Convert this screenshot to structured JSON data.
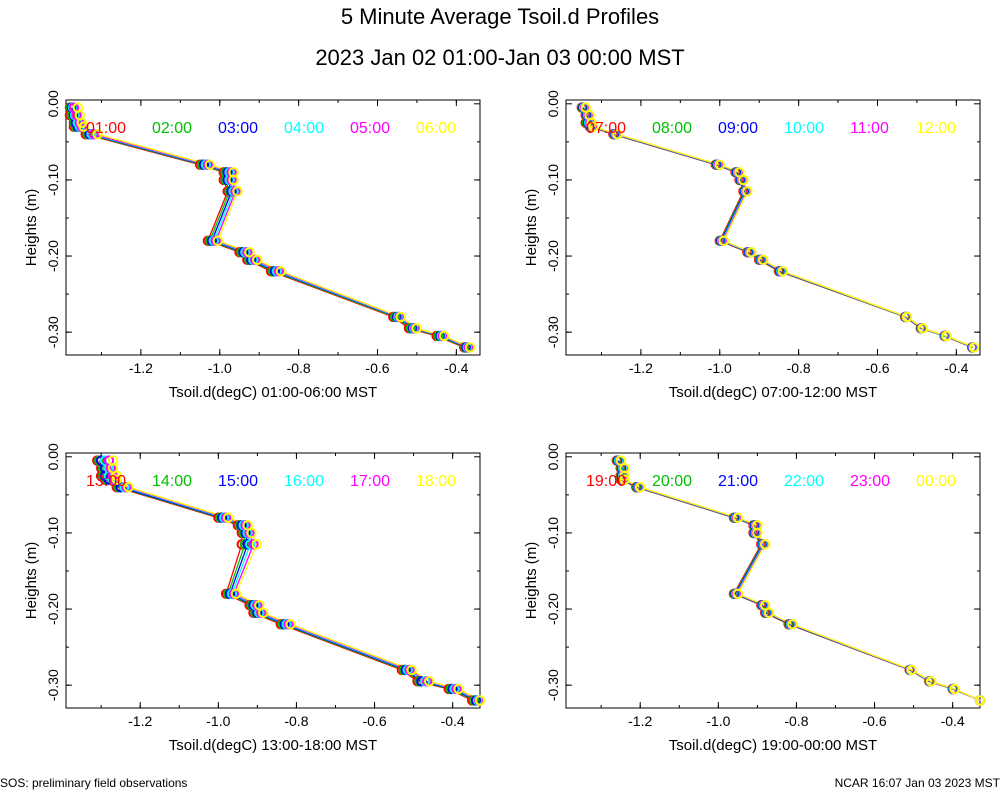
{
  "title": "5 Minute Average Tsoil.d Profiles",
  "subtitle": "2023 Jan 02 01:00-Jan 03 00:00 MST",
  "footer_left": "SOS: preliminary field observations",
  "footer_right": "NCAR 16:07 Jan 03 2023 MST",
  "colors": [
    "#ff0000",
    "#00c000",
    "#0000ff",
    "#00ffff",
    "#ff00ff",
    "#ffff00"
  ],
  "chart_data": [
    {
      "type": "line",
      "xlabel": "Tsoil.d(degC) 01:00-06:00 MST",
      "ylabel": "Heights (m)",
      "xlim": [
        -1.39,
        -0.34
      ],
      "ylim": [
        -0.33,
        0.005
      ],
      "xticks": [
        -1.2,
        -1.0,
        -0.8,
        -0.6,
        -0.4
      ],
      "xtick_labels": [
        "-1.2",
        "-1.0",
        "-0.8",
        "-0.6",
        "-0.4"
      ],
      "yticks": [
        0.0,
        -0.1,
        -0.2,
        -0.3
      ],
      "ytick_labels": [
        "0.00",
        "-0.10",
        "-0.20",
        "-0.30"
      ],
      "heights": [
        -0.005,
        -0.015,
        -0.025,
        -0.03,
        -0.04,
        -0.08,
        -0.09,
        -0.1,
        -0.115,
        -0.18,
        -0.195,
        -0.205,
        -0.22,
        -0.28,
        -0.295,
        -0.305,
        -0.32
      ],
      "series": [
        {
          "name": "01:00",
          "values": [
            -1.38,
            -1.38,
            -1.37,
            -1.37,
            -1.34,
            -1.05,
            -0.99,
            -0.99,
            -0.98,
            -1.03,
            -0.95,
            -0.93,
            -0.87,
            -0.56,
            -0.52,
            -0.45,
            -0.38
          ]
        },
        {
          "name": "02:00",
          "values": [
            -1.378,
            -1.375,
            -1.368,
            -1.365,
            -1.335,
            -1.045,
            -0.985,
            -0.985,
            -0.975,
            -1.025,
            -0.945,
            -0.925,
            -0.865,
            -0.555,
            -0.515,
            -0.445,
            -0.377
          ]
        },
        {
          "name": "03:00",
          "values": [
            -1.375,
            -1.37,
            -1.365,
            -1.36,
            -1.33,
            -1.04,
            -0.98,
            -0.98,
            -0.97,
            -1.02,
            -0.94,
            -0.92,
            -0.86,
            -0.55,
            -0.51,
            -0.44,
            -0.374
          ]
        },
        {
          "name": "04:00",
          "values": [
            -1.372,
            -1.367,
            -1.36,
            -1.355,
            -1.325,
            -1.035,
            -0.975,
            -0.975,
            -0.965,
            -1.015,
            -0.935,
            -0.915,
            -0.855,
            -0.547,
            -0.507,
            -0.437,
            -0.371
          ]
        },
        {
          "name": "05:00",
          "values": [
            -1.37,
            -1.363,
            -1.355,
            -1.35,
            -1.32,
            -1.03,
            -0.97,
            -0.97,
            -0.96,
            -1.01,
            -0.93,
            -0.91,
            -0.85,
            -0.544,
            -0.504,
            -0.434,
            -0.368
          ]
        },
        {
          "name": "06:00",
          "values": [
            -1.36,
            -1.355,
            -1.35,
            -1.345,
            -1.31,
            -1.025,
            -0.965,
            -0.965,
            -0.955,
            -1.005,
            -0.925,
            -0.905,
            -0.845,
            -0.541,
            -0.501,
            -0.431,
            -0.365
          ]
        }
      ]
    },
    {
      "type": "line",
      "xlabel": "Tsoil.d(degC) 07:00-12:00 MST",
      "ylabel": "Heights (m)",
      "xlim": [
        -1.39,
        -0.34
      ],
      "ylim": [
        -0.33,
        0.005
      ],
      "xticks": [
        -1.2,
        -1.0,
        -0.8,
        -0.6,
        -0.4
      ],
      "xtick_labels": [
        "-1.2",
        "-1.0",
        "-0.8",
        "-0.6",
        "-0.4"
      ],
      "yticks": [
        0.0,
        -0.1,
        -0.2,
        -0.3
      ],
      "ytick_labels": [
        "0.00",
        "-0.10",
        "-0.20",
        "-0.30"
      ],
      "heights": [
        -0.005,
        -0.015,
        -0.025,
        -0.03,
        -0.04,
        -0.08,
        -0.09,
        -0.1,
        -0.115,
        -0.18,
        -0.195,
        -0.205,
        -0.22,
        -0.28,
        -0.295,
        -0.305,
        -0.32
      ],
      "series": [
        {
          "name": "07:00",
          "values": [
            -1.35,
            -1.34,
            -1.34,
            -1.33,
            -1.27,
            -1.01,
            -0.96,
            -0.95,
            -0.94,
            -1.0,
            -0.93,
            -0.9,
            -0.85,
            -0.53,
            -0.49,
            -0.43,
            -0.36
          ]
        },
        {
          "name": "08:00",
          "values": [
            -1.348,
            -1.338,
            -1.337,
            -1.328,
            -1.268,
            -1.008,
            -0.958,
            -0.948,
            -0.938,
            -0.998,
            -0.928,
            -0.898,
            -0.848,
            -0.529,
            -0.489,
            -0.429,
            -0.359
          ]
        },
        {
          "name": "09:00",
          "values": [
            -1.346,
            -1.336,
            -1.334,
            -1.326,
            -1.266,
            -1.006,
            -0.956,
            -0.946,
            -0.936,
            -0.996,
            -0.926,
            -0.896,
            -0.846,
            -0.528,
            -0.488,
            -0.428,
            -0.358
          ]
        },
        {
          "name": "10:00",
          "values": [
            -1.344,
            -1.334,
            -1.331,
            -1.324,
            -1.264,
            -1.004,
            -0.954,
            -0.944,
            -0.934,
            -0.994,
            -0.924,
            -0.894,
            -0.844,
            -0.527,
            -0.487,
            -0.427,
            -0.357
          ]
        },
        {
          "name": "11:00",
          "values": [
            -1.342,
            -1.332,
            -1.328,
            -1.322,
            -1.262,
            -1.002,
            -0.952,
            -0.942,
            -0.932,
            -0.992,
            -0.922,
            -0.892,
            -0.842,
            -0.526,
            -0.486,
            -0.426,
            -0.356
          ]
        },
        {
          "name": "12:00",
          "values": [
            -1.34,
            -1.33,
            -1.325,
            -1.32,
            -1.26,
            -1.0,
            -0.95,
            -0.94,
            -0.93,
            -0.99,
            -0.92,
            -0.89,
            -0.84,
            -0.525,
            -0.485,
            -0.425,
            -0.355
          ]
        }
      ]
    },
    {
      "type": "line",
      "xlabel": "Tsoil.d(degC) 13:00-18:00 MST",
      "ylabel": "Heights (m)",
      "xlim": [
        -1.39,
        -0.33
      ],
      "ylim": [
        -0.33,
        0.005
      ],
      "xticks": [
        -1.2,
        -1.0,
        -0.8,
        -0.6,
        -0.4
      ],
      "xtick_labels": [
        "-1.2",
        "-1.0",
        "-0.8",
        "-0.6",
        "-0.4"
      ],
      "yticks": [
        0.0,
        -0.1,
        -0.2,
        -0.3
      ],
      "ytick_labels": [
        "0.00",
        "-0.10",
        "-0.20",
        "-0.30"
      ],
      "heights": [
        -0.005,
        -0.015,
        -0.025,
        -0.03,
        -0.04,
        -0.08,
        -0.09,
        -0.1,
        -0.115,
        -0.18,
        -0.195,
        -0.205,
        -0.22,
        -0.28,
        -0.295,
        -0.305,
        -0.32
      ],
      "series": [
        {
          "name": "13:00",
          "values": [
            -1.31,
            -1.3,
            -1.3,
            -1.29,
            -1.26,
            -1.0,
            -0.95,
            -0.94,
            -0.94,
            -0.98,
            -0.92,
            -0.91,
            -0.84,
            -0.53,
            -0.49,
            -0.41,
            -0.35
          ]
        },
        {
          "name": "14:00",
          "values": [
            -1.305,
            -1.295,
            -1.295,
            -1.285,
            -1.255,
            -0.995,
            -0.945,
            -0.935,
            -0.932,
            -0.975,
            -0.915,
            -0.905,
            -0.835,
            -0.525,
            -0.485,
            -0.405,
            -0.345
          ]
        },
        {
          "name": "15:00",
          "values": [
            -1.3,
            -1.29,
            -1.29,
            -1.28,
            -1.25,
            -0.99,
            -0.94,
            -0.93,
            -0.925,
            -0.97,
            -0.91,
            -0.9,
            -0.83,
            -0.52,
            -0.48,
            -0.4,
            -0.34
          ]
        },
        {
          "name": "16:00",
          "values": [
            -1.29,
            -1.28,
            -1.28,
            -1.27,
            -1.24,
            -0.985,
            -0.935,
            -0.925,
            -0.918,
            -0.965,
            -0.905,
            -0.895,
            -0.825,
            -0.515,
            -0.47,
            -0.395,
            -0.335
          ]
        },
        {
          "name": "17:00",
          "values": [
            -1.28,
            -1.275,
            -1.27,
            -1.265,
            -1.235,
            -0.98,
            -0.93,
            -0.92,
            -0.91,
            -0.96,
            -0.9,
            -0.89,
            -0.82,
            -0.51,
            -0.465,
            -0.39,
            -0.332
          ]
        },
        {
          "name": "18:00",
          "values": [
            -1.27,
            -1.27,
            -1.26,
            -1.26,
            -1.23,
            -0.975,
            -0.925,
            -0.915,
            -0.902,
            -0.955,
            -0.895,
            -0.885,
            -0.815,
            -0.505,
            -0.46,
            -0.385,
            -0.33
          ]
        }
      ]
    },
    {
      "type": "line",
      "xlabel": "Tsoil.d(degC) 19:00-00:00 MST",
      "ylabel": "Heights (m)",
      "xlim": [
        -1.39,
        -0.33
      ],
      "ylim": [
        -0.33,
        0.005
      ],
      "xticks": [
        -1.2,
        -1.0,
        -0.8,
        -0.6,
        -0.4
      ],
      "xtick_labels": [
        "-1.2",
        "-1.0",
        "-0.8",
        "-0.6",
        "-0.4"
      ],
      "yticks": [
        0.0,
        -0.1,
        -0.2,
        -0.3
      ],
      "ytick_labels": [
        "0.00",
        "-0.10",
        "-0.20",
        "-0.30"
      ],
      "heights": [
        -0.005,
        -0.015,
        -0.025,
        -0.03,
        -0.04,
        -0.08,
        -0.09,
        -0.1,
        -0.115,
        -0.18,
        -0.195,
        -0.205,
        -0.22,
        -0.28,
        -0.295,
        -0.305,
        -0.32
      ],
      "series": [
        {
          "name": "19:00",
          "values": [
            -1.26,
            -1.25,
            -1.25,
            -1.25,
            -1.21,
            -0.96,
            -0.91,
            -0.91,
            -0.89,
            -0.96,
            -0.89,
            -0.88,
            -0.82,
            -0.51,
            -0.46,
            -0.4,
            -0.33
          ]
        },
        {
          "name": "20:00",
          "values": [
            -1.258,
            -1.248,
            -1.248,
            -1.248,
            -1.208,
            -0.958,
            -0.908,
            -0.908,
            -0.888,
            -0.958,
            -0.888,
            -0.878,
            -0.818,
            -0.509,
            -0.459,
            -0.399,
            -0.33
          ]
        },
        {
          "name": "21:00",
          "values": [
            -1.256,
            -1.246,
            -1.246,
            -1.246,
            -1.206,
            -0.956,
            -0.906,
            -0.906,
            -0.886,
            -0.956,
            -0.886,
            -0.876,
            -0.816,
            -0.508,
            -0.458,
            -0.398,
            -0.33
          ]
        },
        {
          "name": "22:00",
          "values": [
            -1.254,
            -1.244,
            -1.244,
            -1.244,
            -1.204,
            -0.954,
            -0.904,
            -0.904,
            -0.884,
            -0.954,
            -0.884,
            -0.874,
            -0.814,
            -0.507,
            -0.457,
            -0.397,
            -0.33
          ]
        },
        {
          "name": "23:00",
          "values": [
            -1.252,
            -1.242,
            -1.242,
            -1.242,
            -1.202,
            -0.952,
            -0.902,
            -0.902,
            -0.882,
            -0.952,
            -0.882,
            -0.872,
            -0.812,
            -0.506,
            -0.456,
            -0.396,
            -0.33
          ]
        },
        {
          "name": "00:00",
          "values": [
            -1.25,
            -1.24,
            -1.24,
            -1.24,
            -1.2,
            -0.95,
            -0.9,
            -0.9,
            -0.88,
            -0.95,
            -0.88,
            -0.87,
            -0.81,
            -0.505,
            -0.455,
            -0.395,
            -0.33
          ]
        }
      ]
    }
  ]
}
